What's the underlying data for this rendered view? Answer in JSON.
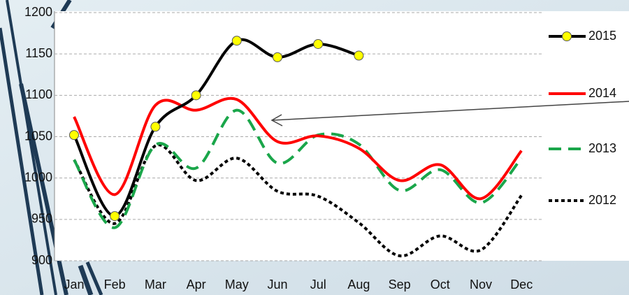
{
  "chart_data": {
    "type": "line",
    "categories": [
      "Jan",
      "Feb",
      "Mar",
      "Apr",
      "May",
      "Jun",
      "Jul",
      "Aug",
      "Sep",
      "Oct",
      "Nov",
      "Dec"
    ],
    "series": [
      {
        "name": "2015",
        "color": "#000000",
        "style": "solid",
        "marker": "#ffff00",
        "values": [
          1052,
          954,
          1062,
          1100,
          1166,
          1146,
          1162,
          1148,
          null,
          null,
          null,
          null
        ]
      },
      {
        "name": "2014",
        "color": "#ff0000",
        "style": "solid",
        "values": [
          1074,
          980,
          1088,
          1082,
          1095,
          1044,
          1051,
          1036,
          997,
          1016,
          975,
          1033
        ]
      },
      {
        "name": "2013",
        "color": "#1aa64a",
        "style": "dashed",
        "values": [
          1022,
          940,
          1040,
          1012,
          1082,
          1018,
          1052,
          1041,
          985,
          1010,
          970,
          1024
        ]
      },
      {
        "name": "2012",
        "color": "#000000",
        "style": "dotted",
        "values": [
          1022,
          945,
          1039,
          997,
          1024,
          984,
          978,
          946,
          906,
          930,
          913,
          979
        ]
      }
    ],
    "ylim": [
      900,
      1200
    ],
    "yticks": [
      900,
      950,
      1000,
      1050,
      1100,
      1150,
      1200
    ],
    "grid": true
  }
}
